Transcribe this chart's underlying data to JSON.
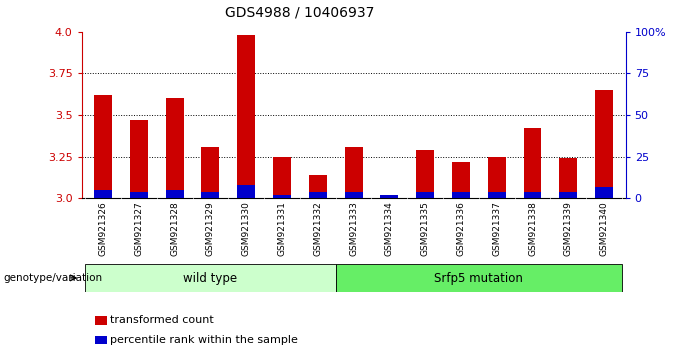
{
  "title": "GDS4988 / 10406937",
  "samples": [
    "GSM921326",
    "GSM921327",
    "GSM921328",
    "GSM921329",
    "GSM921330",
    "GSM921331",
    "GSM921332",
    "GSM921333",
    "GSM921334",
    "GSM921335",
    "GSM921336",
    "GSM921337",
    "GSM921338",
    "GSM921339",
    "GSM921340"
  ],
  "red_values": [
    3.62,
    3.47,
    3.6,
    3.31,
    3.98,
    3.25,
    3.14,
    3.31,
    3.0,
    3.29,
    3.22,
    3.25,
    3.42,
    3.24,
    3.65
  ],
  "blue_pct": [
    5,
    4,
    5,
    4,
    8,
    2,
    4,
    4,
    2,
    4,
    4,
    4,
    4,
    4,
    7
  ],
  "ylim": [
    3.0,
    4.0
  ],
  "yticks": [
    3.0,
    3.25,
    3.5,
    3.75,
    4.0
  ],
  "right_yticks": [
    0,
    25,
    50,
    75,
    100
  ],
  "groups": [
    {
      "label": "wild type",
      "start": 0,
      "end": 7,
      "color": "#ccffcc"
    },
    {
      "label": "Srfp5 mutation",
      "start": 7,
      "end": 15,
      "color": "#66ee66"
    }
  ],
  "red_color": "#cc0000",
  "blue_color": "#0000cc",
  "legend_red": "transformed count",
  "legend_blue": "percentile rank within the sample",
  "genotype_label": "genotype/variation",
  "bar_width": 0.5
}
